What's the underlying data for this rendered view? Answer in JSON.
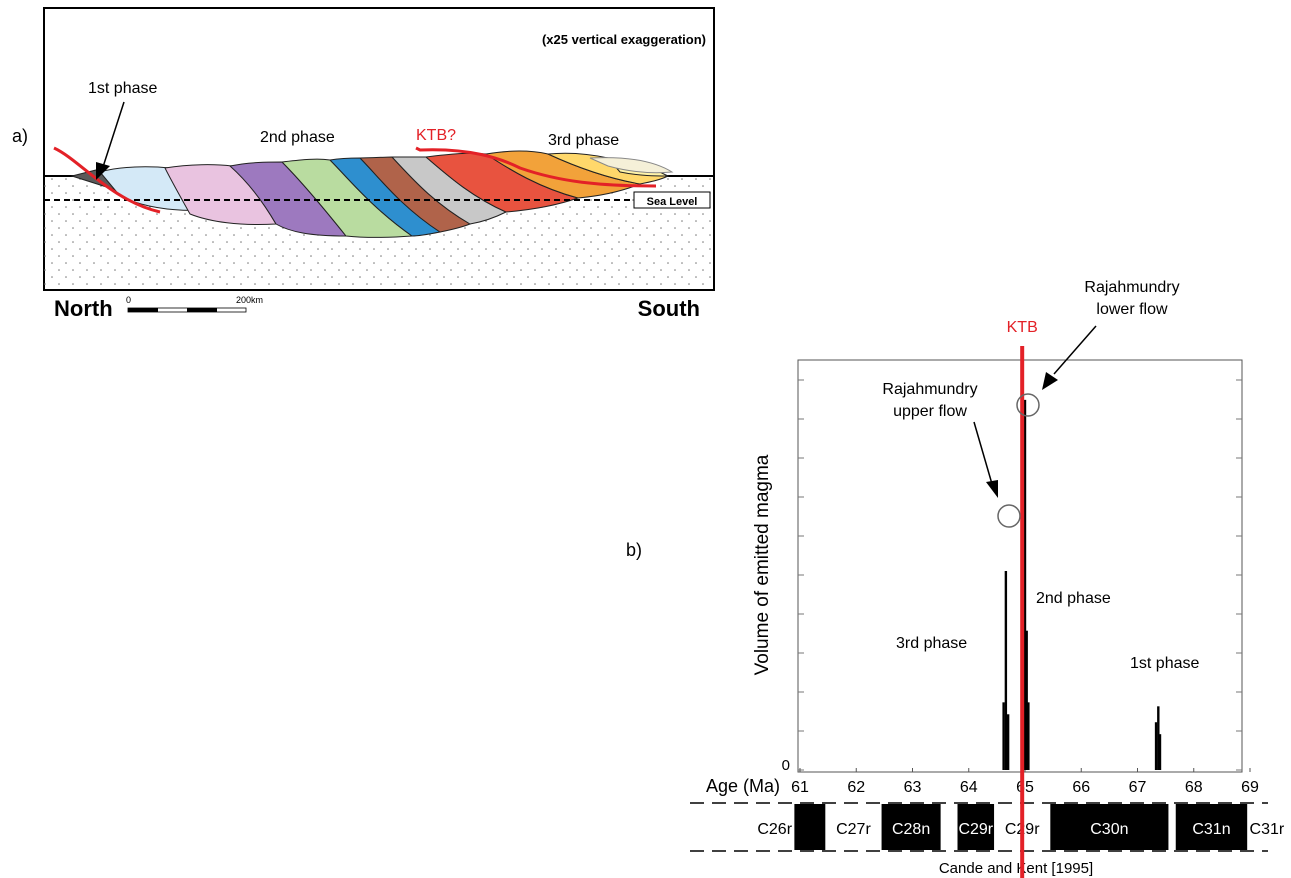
{
  "panel_a": {
    "label": "a)",
    "exaggeration": "(x25 vertical exaggeration)",
    "phase1": "1st phase",
    "phase2": "2nd phase",
    "phase3": "3rd phase",
    "ktb": "KTB?",
    "sea_level": "Sea Level",
    "north": "North",
    "south": "South",
    "scale_start": "0",
    "scale_end": "200km",
    "colors": {
      "ktb_line": "#e32127",
      "substrate": "#ffffff",
      "flows": [
        "#5a5a5a",
        "#d4e9f7",
        "#e9c3e0",
        "#a07bc0",
        "#8e6aae",
        "#b9dca0",
        "#6aa84f",
        "#2e8fcf",
        "#b0634a",
        "#bfbfbf",
        "#e8533f",
        "#f2a23a",
        "#ffd86b",
        "#fff3a8",
        "#f5f0d8"
      ]
    }
  },
  "panel_b": {
    "label": "b)",
    "ylabel": "Volume of emitted magma",
    "xlabel": "Age (Ma)",
    "y_zero": "0",
    "ktb": "KTB",
    "ktb_color": "#e32127",
    "ann_upper": [
      "Rajahmundry",
      "upper flow"
    ],
    "ann_lower": [
      "Rajahmundry",
      "lower flow"
    ],
    "phase1": "1st phase",
    "phase2": "2nd phase",
    "phase3": "3rd phase",
    "source": "Cande and Kent [1995]"
  },
  "chart_data": {
    "type": "bar",
    "xlabel": "Age (Ma)",
    "ylabel": "Volume of emitted magma",
    "xlim": [
      61,
      69
    ],
    "ticks": [
      61,
      62,
      63,
      64,
      65,
      66,
      67,
      68,
      69
    ],
    "ylim": [
      0,
      1
    ],
    "ktb_age": 64.95,
    "series": [
      {
        "x": [
          64.62,
          64.66,
          64.7,
          64.97,
          65.0,
          65.03,
          65.06,
          67.33,
          67.37,
          67.4
        ],
        "values": [
          0.17,
          0.5,
          0.14,
          0.2,
          0.93,
          0.35,
          0.17,
          0.12,
          0.16,
          0.09
        ]
      }
    ],
    "chrons": [
      {
        "label": "C26r",
        "from": 60.2,
        "to": 60.9,
        "color": "white"
      },
      {
        "label": "",
        "from": 60.9,
        "to": 61.45,
        "color": "black"
      },
      {
        "label": "C27r",
        "from": 61.45,
        "to": 62.45,
        "color": "white"
      },
      {
        "label": "C28n",
        "from": 62.45,
        "to": 63.5,
        "color": "black"
      },
      {
        "label": "",
        "from": 63.5,
        "to": 63.8,
        "color": "white"
      },
      {
        "label": "C29r",
        "from": 63.8,
        "to": 64.45,
        "color": "black"
      },
      {
        "label": "C29r",
        "from": 64.45,
        "to": 65.45,
        "color": "white"
      },
      {
        "label": "C30n",
        "from": 65.45,
        "to": 67.55,
        "color": "black"
      },
      {
        "label": "",
        "from": 67.55,
        "to": 67.68,
        "color": "white"
      },
      {
        "label": "C31n",
        "from": 67.68,
        "to": 68.95,
        "color": "black"
      },
      {
        "label": "C31r",
        "from": 68.95,
        "to": 69.65,
        "color": "white"
      }
    ]
  }
}
